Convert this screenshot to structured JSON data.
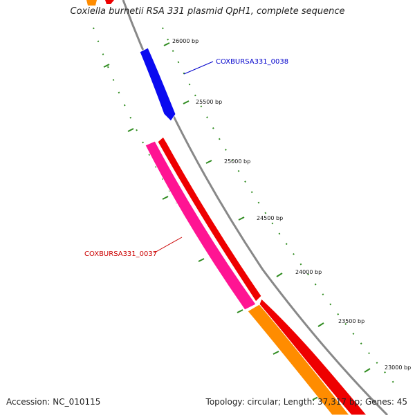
{
  "title": "Coxiella burnetii RSA 331 plasmid QpH1, complete sequence",
  "footer": {
    "accession": "Accession: NC_010115",
    "summary": "Topology: circular; Length: 37,317 bp; Genes: 45"
  },
  "ticks": [
    {
      "label": "26000 bp"
    },
    {
      "label": "25500 bp"
    },
    {
      "label": "25000 bp"
    },
    {
      "label": "24500 bp"
    },
    {
      "label": "24000 bp"
    },
    {
      "label": "23500 bp"
    },
    {
      "label": "23000 bp"
    }
  ],
  "genes": [
    {
      "label": "COXBURSA331_0038",
      "color": "#0000cc"
    },
    {
      "label": "COXBURSA331_0037",
      "color": "#cc0000"
    }
  ],
  "colors": {
    "backbone": "#888888",
    "tick": "#2e8b1e",
    "cds_blue": "#0a0af0",
    "cds_red": "#ee0000",
    "cds_pink": "#ff1493",
    "cds_orange": "#ff8c00"
  }
}
